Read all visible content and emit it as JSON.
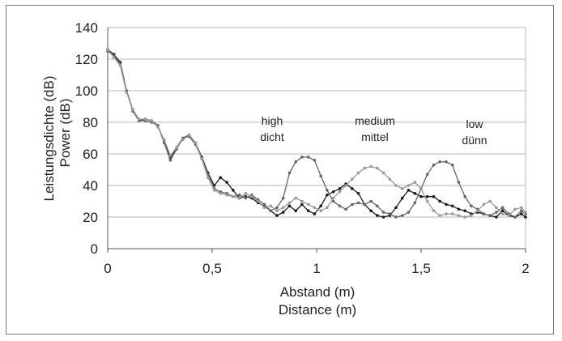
{
  "chart_data": {
    "type": "line",
    "xlabel": [
      "Abstand (m)",
      "Distance (m)"
    ],
    "ylabel": [
      "Leistungsdichte (dB)",
      "Power (dB)"
    ],
    "xlim": [
      0,
      2
    ],
    "ylim": [
      0,
      140
    ],
    "x_ticks": [
      {
        "value": 0,
        "label": "0"
      },
      {
        "value": 0.5,
        "label": "0,5"
      },
      {
        "value": 1,
        "label": "1"
      },
      {
        "value": 1.5,
        "label": "1,5"
      },
      {
        "value": 2,
        "label": "2"
      }
    ],
    "y_ticks": [
      0,
      20,
      40,
      60,
      80,
      100,
      120,
      140
    ],
    "grid": "horizontal",
    "annotations": [
      {
        "lines": [
          "high",
          "dicht"
        ],
        "x": 0.78
      },
      {
        "lines": [
          "medium",
          "mittel"
        ],
        "x": 1.28
      },
      {
        "lines": [
          "low",
          "dünn"
        ],
        "x": 1.75
      }
    ],
    "series": [
      {
        "color": "#1c1c1c",
        "x": [
          0,
          0.03,
          0.06,
          0.09,
          0.12,
          0.15,
          0.18,
          0.21,
          0.24,
          0.27,
          0.3,
          0.33,
          0.36,
          0.39,
          0.42,
          0.45,
          0.48,
          0.51,
          0.54,
          0.57,
          0.6,
          0.63,
          0.66,
          0.69,
          0.72,
          0.75,
          0.78,
          0.81,
          0.84,
          0.87,
          0.9,
          0.93,
          0.96,
          0.99,
          1.02,
          1.05,
          1.08,
          1.11,
          1.14,
          1.17,
          1.2,
          1.23,
          1.26,
          1.29,
          1.32,
          1.35,
          1.38,
          1.41,
          1.44,
          1.47,
          1.5,
          1.53,
          1.56,
          1.59,
          1.62,
          1.65,
          1.68,
          1.71,
          1.74,
          1.77,
          1.8,
          1.83,
          1.86,
          1.89,
          1.92,
          1.95,
          1.98,
          2.0
        ],
        "y": [
          126,
          123,
          118,
          100,
          88,
          81,
          82,
          81,
          78,
          68,
          57,
          64,
          70,
          72,
          67,
          58,
          48,
          40,
          45,
          42,
          37,
          32,
          33,
          32,
          29,
          27,
          24,
          21,
          23,
          27,
          24,
          28,
          24,
          22,
          27,
          34,
          36,
          38,
          41,
          38,
          35,
          28,
          24,
          21,
          20,
          21,
          26,
          32,
          37,
          35,
          33,
          33,
          33,
          30,
          28,
          27,
          25,
          24,
          22,
          23,
          22,
          21,
          20,
          24,
          21,
          20,
          22,
          20
        ]
      },
      {
        "color": "#666666",
        "x": [
          0,
          0.03,
          0.06,
          0.09,
          0.12,
          0.15,
          0.18,
          0.21,
          0.24,
          0.27,
          0.3,
          0.33,
          0.36,
          0.39,
          0.42,
          0.45,
          0.48,
          0.51,
          0.54,
          0.57,
          0.6,
          0.63,
          0.66,
          0.69,
          0.72,
          0.75,
          0.78,
          0.81,
          0.84,
          0.87,
          0.9,
          0.93,
          0.96,
          0.99,
          1.02,
          1.05,
          1.08,
          1.11,
          1.14,
          1.17,
          1.2,
          1.23,
          1.26,
          1.29,
          1.32,
          1.35,
          1.38,
          1.41,
          1.44,
          1.47,
          1.5,
          1.53,
          1.56,
          1.59,
          1.62,
          1.65,
          1.68,
          1.71,
          1.74,
          1.77,
          1.8,
          1.83,
          1.86,
          1.89,
          1.92,
          1.95,
          1.98,
          2.0
        ],
        "y": [
          125,
          122,
          117,
          100,
          87,
          81,
          81,
          80,
          78,
          67,
          56,
          63,
          70,
          71,
          66,
          57,
          47,
          38,
          36,
          35,
          33,
          34,
          32,
          34,
          31,
          28,
          24,
          26,
          32,
          48,
          55,
          58,
          58,
          56,
          46,
          37,
          30,
          27,
          25,
          28,
          29,
          28,
          30,
          27,
          23,
          22,
          20,
          21,
          23,
          29,
          38,
          47,
          53,
          55,
          55,
          53,
          42,
          33,
          27,
          25,
          22,
          21,
          23,
          26,
          22,
          20,
          24,
          22
        ]
      },
      {
        "color": "#9a9a9a",
        "x": [
          0,
          0.03,
          0.06,
          0.09,
          0.12,
          0.15,
          0.18,
          0.21,
          0.24,
          0.27,
          0.3,
          0.33,
          0.36,
          0.39,
          0.42,
          0.45,
          0.48,
          0.51,
          0.54,
          0.57,
          0.6,
          0.63,
          0.66,
          0.69,
          0.72,
          0.75,
          0.78,
          0.81,
          0.84,
          0.87,
          0.9,
          0.93,
          0.96,
          0.99,
          1.02,
          1.05,
          1.08,
          1.11,
          1.14,
          1.17,
          1.2,
          1.23,
          1.26,
          1.29,
          1.32,
          1.35,
          1.38,
          1.41,
          1.44,
          1.47,
          1.5,
          1.53,
          1.56,
          1.59,
          1.62,
          1.65,
          1.68,
          1.71,
          1.74,
          1.77,
          1.8,
          1.83,
          1.86,
          1.89,
          1.92,
          1.95,
          1.98,
          2.0
        ],
        "y": [
          126,
          121,
          116,
          99,
          88,
          82,
          82,
          81,
          77,
          69,
          59,
          64,
          69,
          72,
          67,
          57,
          45,
          37,
          35,
          34,
          33,
          32,
          35,
          33,
          30,
          26,
          27,
          24,
          26,
          29,
          32,
          30,
          28,
          26,
          24,
          26,
          32,
          36,
          40,
          44,
          48,
          51,
          52,
          51,
          48,
          44,
          40,
          38,
          40,
          42,
          38,
          30,
          24,
          21,
          22,
          22,
          21,
          20,
          21,
          24,
          28,
          30,
          26,
          22,
          21,
          25,
          26,
          23
        ]
      }
    ]
  }
}
